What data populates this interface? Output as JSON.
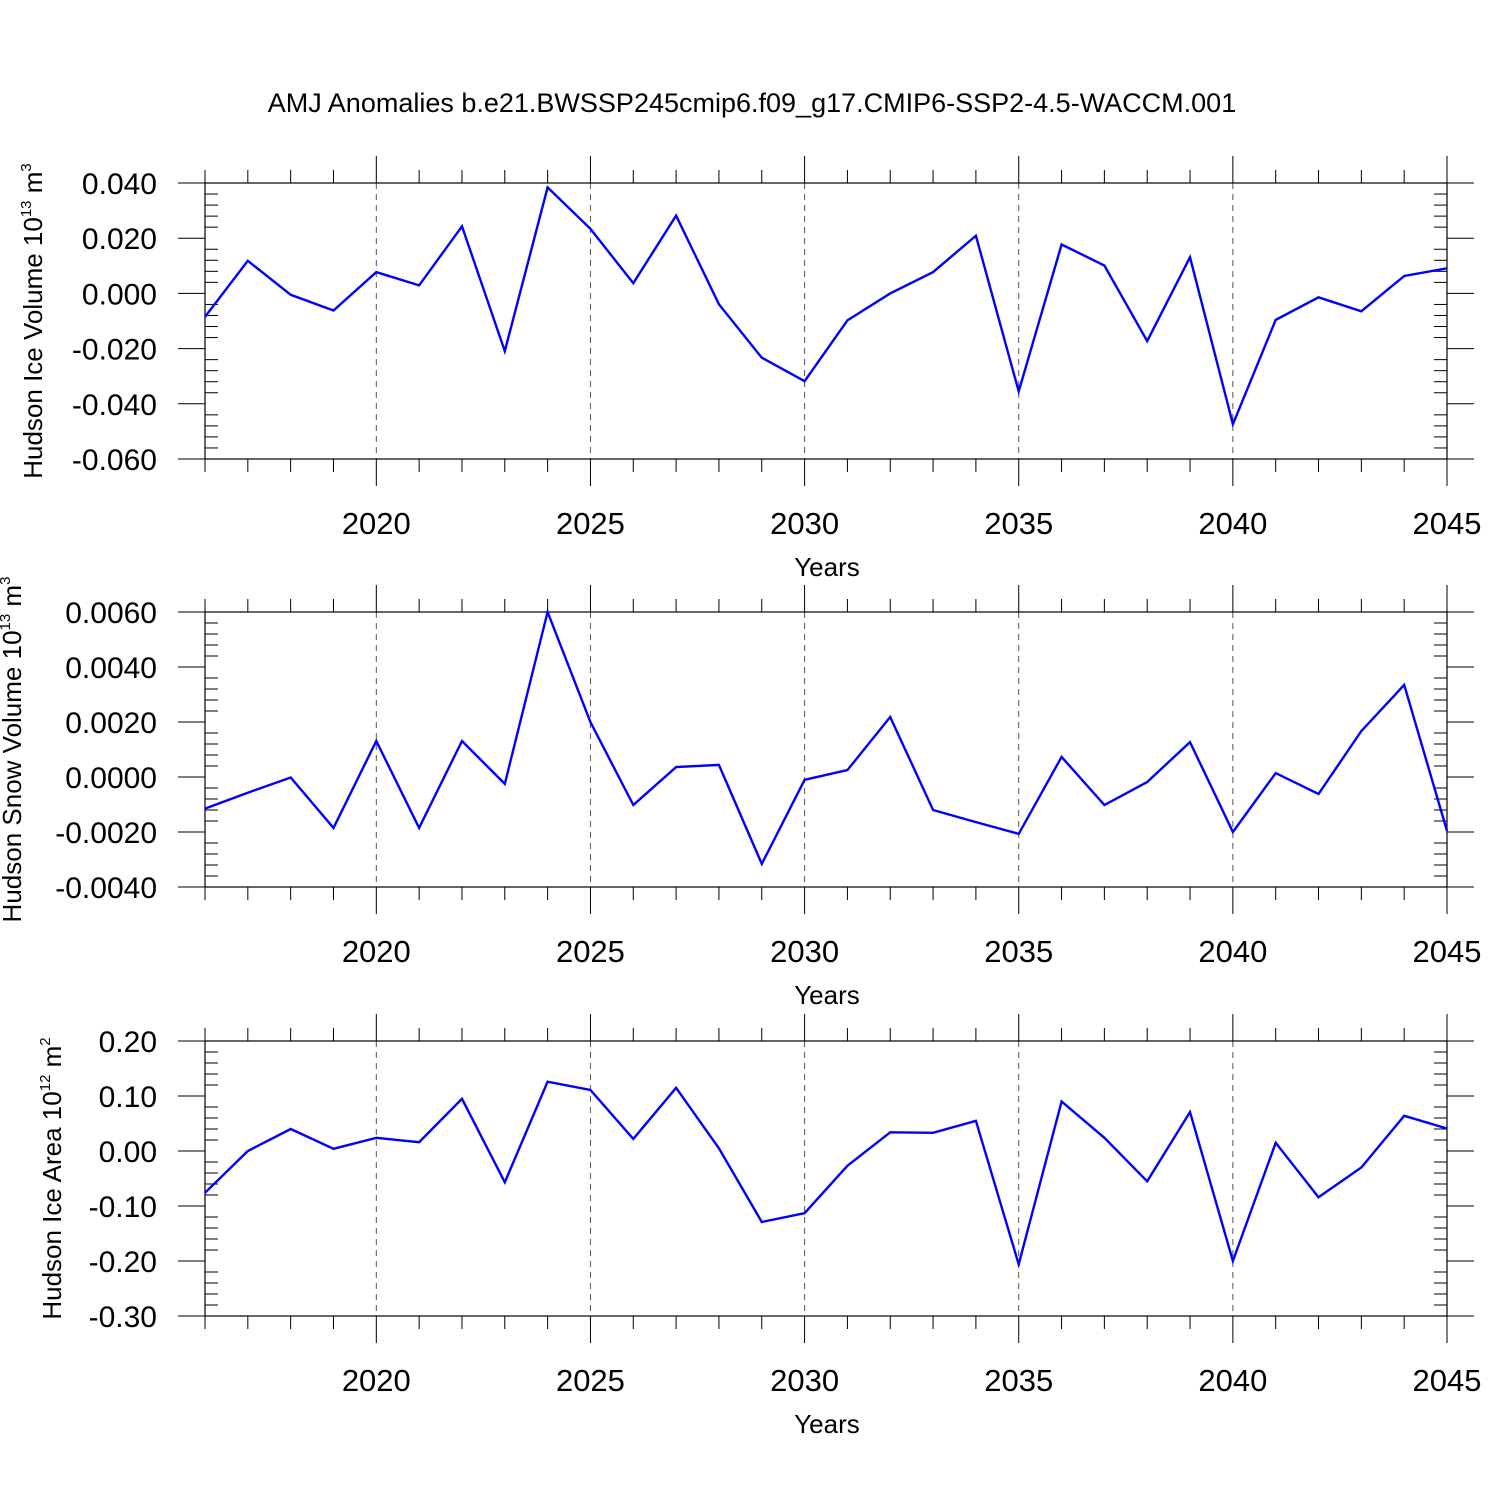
{
  "title": "AMJ Anomalies b.e21.BWSSP245cmip6.f09_g17.CMIP6-SSP2-4.5-WACCM.001",
  "colors": {
    "line": "#0000ff",
    "axis": "#000000",
    "grid": "#555555"
  },
  "chart_data": [
    {
      "type": "line",
      "ylabel": {
        "text": "Hudson Ice Volume 10",
        "exp": "13",
        "unit": " m",
        "unit_exp": "3"
      },
      "xlabel": "Years",
      "xlim": [
        2016,
        2045
      ],
      "ylim": [
        -0.06,
        0.04
      ],
      "yticks": [
        "0.040",
        "0.020",
        "0.000",
        "-0.020",
        "-0.040",
        "-0.060"
      ],
      "ytick_values": [
        0.04,
        0.02,
        0.0,
        -0.02,
        -0.04,
        -0.06
      ],
      "xticks": [
        "2020",
        "2025",
        "2030",
        "2035",
        "2040",
        "2045"
      ],
      "xtick_values": [
        2020,
        2025,
        2030,
        2035,
        2040,
        2045
      ],
      "grid": "vertical dashed at major x ticks",
      "x": [
        2016,
        2017,
        2018,
        2019,
        2020,
        2021,
        2022,
        2023,
        2024,
        2025,
        2026,
        2027,
        2028,
        2029,
        2030,
        2031,
        2032,
        2033,
        2034,
        2035,
        2036,
        2037,
        2038,
        2039,
        2040,
        2041,
        2042,
        2043,
        2044,
        2045
      ],
      "values": [
        -0.0085,
        0.0118,
        -0.0005,
        -0.0062,
        0.0077,
        0.0029,
        0.0243,
        -0.0209,
        0.0384,
        0.0234,
        0.0037,
        0.0282,
        -0.0039,
        -0.0233,
        -0.0318,
        -0.0098,
        -0.0,
        0.0077,
        0.0209,
        -0.0355,
        0.0177,
        0.0101,
        -0.0173,
        0.0131,
        -0.0474,
        -0.0096,
        -0.0014,
        -0.0065,
        0.0063,
        0.0091
      ]
    },
    {
      "type": "line",
      "ylabel": {
        "text": "Hudson Snow Volume 10",
        "exp": "13",
        "unit": " m",
        "unit_exp": "3"
      },
      "xlabel": "Years",
      "xlim": [
        2016,
        2045
      ],
      "ylim": [
        -0.004,
        0.006
      ],
      "yticks": [
        "0.0060",
        "0.0040",
        "0.0020",
        "0.0000",
        "-0.0020",
        "-0.0040"
      ],
      "ytick_values": [
        0.006,
        0.004,
        0.002,
        0.0,
        -0.002,
        -0.004
      ],
      "xticks": [
        "2020",
        "2025",
        "2030",
        "2035",
        "2040",
        "2045"
      ],
      "xtick_values": [
        2020,
        2025,
        2030,
        2035,
        2040,
        2045
      ],
      "grid": "vertical dashed at major x ticks",
      "x": [
        2016,
        2017,
        2018,
        2019,
        2020,
        2021,
        2022,
        2023,
        2024,
        2025,
        2026,
        2027,
        2028,
        2029,
        2030,
        2031,
        2032,
        2033,
        2034,
        2035,
        2036,
        2037,
        2038,
        2039,
        2040,
        2041,
        2042,
        2043,
        2044,
        2045
      ],
      "values": [
        -0.00115,
        -0.00057,
        -2e-05,
        -0.00185,
        0.00131,
        -0.00185,
        0.00131,
        -0.00025,
        0.006,
        0.002,
        -0.00102,
        0.00036,
        0.00044,
        -0.00316,
        -0.0001,
        0.00025,
        0.00218,
        -0.0012,
        -0.00164,
        -0.00207,
        0.00073,
        -0.00102,
        -0.00018,
        0.00127,
        -0.002,
        0.00014,
        -0.00062,
        0.00167,
        0.00335,
        -0.00196
      ]
    },
    {
      "type": "line",
      "ylabel": {
        "text": "Hudson Ice Area 10",
        "exp": "12",
        "unit": " m",
        "unit_exp": "2"
      },
      "xlabel": "Years",
      "xlim": [
        2016,
        2045
      ],
      "ylim": [
        -0.3,
        0.2
      ],
      "yticks": [
        "0.20",
        "0.10",
        "0.00",
        "-0.10",
        "-0.20",
        "-0.30"
      ],
      "ytick_values": [
        0.2,
        0.1,
        0.0,
        -0.1,
        -0.2,
        -0.3
      ],
      "xticks": [
        "2020",
        "2025",
        "2030",
        "2035",
        "2040",
        "2045"
      ],
      "xtick_values": [
        2020,
        2025,
        2030,
        2035,
        2040,
        2045
      ],
      "grid": "vertical dashed at major x ticks",
      "x": [
        2016,
        2017,
        2018,
        2019,
        2020,
        2021,
        2022,
        2023,
        2024,
        2025,
        2026,
        2027,
        2028,
        2029,
        2030,
        2031,
        2032,
        2033,
        2034,
        2035,
        2036,
        2037,
        2038,
        2039,
        2040,
        2041,
        2042,
        2043,
        2044,
        2045
      ],
      "values": [
        -0.076,
        0.0,
        0.04,
        0.004,
        0.024,
        0.016,
        0.095,
        -0.057,
        0.126,
        0.111,
        0.022,
        0.115,
        0.005,
        -0.129,
        -0.113,
        -0.027,
        0.034,
        0.033,
        0.055,
        -0.206,
        0.09,
        0.024,
        -0.055,
        0.071,
        -0.2,
        0.015,
        -0.084,
        -0.03,
        0.064,
        0.041
      ]
    }
  ]
}
